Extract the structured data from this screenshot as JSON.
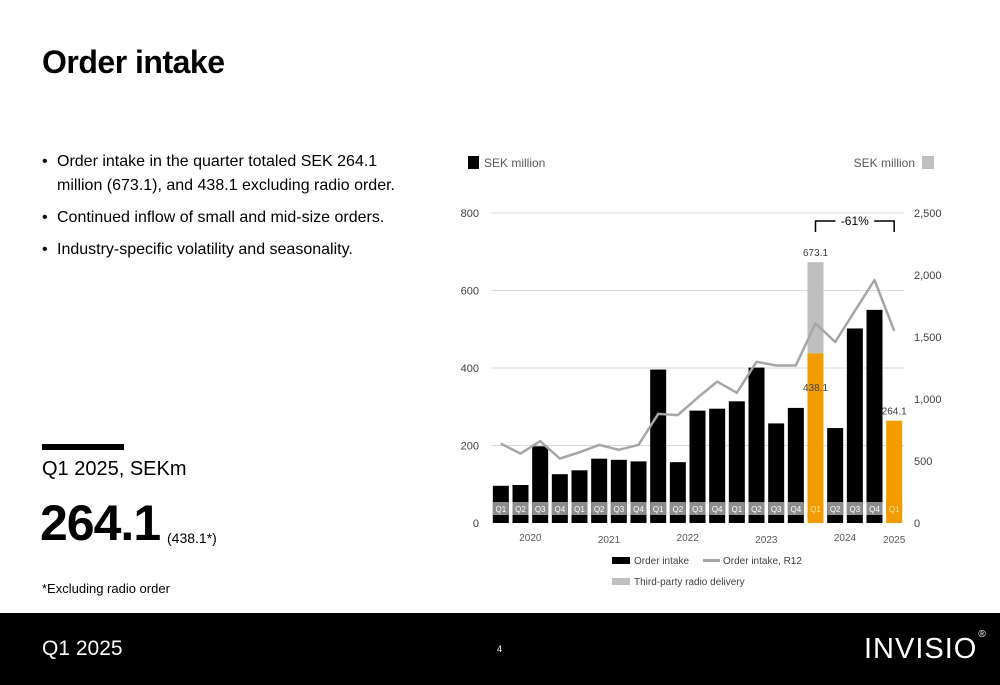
{
  "slide": {
    "title": "Order intake",
    "bullets": [
      "Order intake in the quarter totaled SEK 264.1 million (673.1), and 438.1 excluding radio order.",
      "Continued inflow of small and mid-size orders.",
      "Industry-specific volatility and seasonality."
    ],
    "kpi_label": "Q1 2025, SEKm",
    "kpi_value": "264.1",
    "kpi_note": "(438.1*)",
    "footnote": "*Excluding radio order"
  },
  "footer": {
    "left_text": "Q1 2025",
    "page": "4",
    "logo": "INVISIO",
    "logo_mark": "®"
  },
  "colors": {
    "order_intake": "#000000",
    "highlight": "#f39c00",
    "radio": "#bfbfbf",
    "r12_line": "#a6a6a6",
    "grid": "#d9d9d9",
    "quarter_tag": "#8c8c8c"
  },
  "chart_data": {
    "type": "bar",
    "left_unit_label": "SEK million",
    "right_unit_label": "SEK million",
    "y_left": {
      "min": 0,
      "max": 800,
      "ticks": [
        "0",
        "200",
        "400",
        "600",
        "800"
      ]
    },
    "y_right": {
      "min": 0,
      "max": 2500,
      "ticks": [
        "0",
        "500",
        "1,000",
        "1,500",
        "2,000",
        "2,500"
      ]
    },
    "grid": true,
    "quarters": [
      "Q1",
      "Q2",
      "Q3",
      "Q4",
      "Q1",
      "Q2",
      "Q3",
      "Q4",
      "Q1",
      "Q2",
      "Q3",
      "Q4",
      "Q1",
      "Q2",
      "Q3",
      "Q4",
      "Q1",
      "Q2",
      "Q3",
      "Q4",
      "Q1"
    ],
    "years": [
      {
        "label": "2020",
        "start": 0,
        "end": 3
      },
      {
        "label": "2021",
        "start": 4,
        "end": 7
      },
      {
        "label": "2022",
        "start": 8,
        "end": 11
      },
      {
        "label": "2023",
        "start": 12,
        "end": 15
      },
      {
        "label": "2024",
        "start": 16,
        "end": 19
      },
      {
        "label": "2025",
        "start": 20,
        "end": 20
      }
    ],
    "series": [
      {
        "name": "Order intake",
        "type": "bar",
        "axis": "left",
        "values": [
          96,
          98,
          198,
          126,
          136,
          166,
          163,
          159,
          396,
          157,
          290,
          295,
          314,
          401,
          257,
          297,
          438.1,
          245,
          502,
          550,
          264.1
        ]
      },
      {
        "name": "Third-party radio delivery",
        "type": "bar-stacked",
        "axis": "left",
        "values": [
          0,
          0,
          0,
          0,
          0,
          0,
          0,
          0,
          0,
          0,
          0,
          0,
          0,
          0,
          0,
          0,
          235,
          0,
          0,
          0,
          0
        ]
      },
      {
        "name": "Order intake, R12",
        "type": "line",
        "axis": "right",
        "values": [
          640,
          560,
          660,
          520,
          570,
          630,
          590,
          630,
          880,
          870,
          1010,
          1140,
          1050,
          1300,
          1270,
          1270,
          1610,
          1460,
          1710,
          1960,
          1550
        ]
      }
    ],
    "highlight_indices": [
      16,
      20
    ],
    "data_labels": [
      {
        "index": 16,
        "text": "673.1",
        "value": 673.1,
        "position": "above"
      },
      {
        "index": 16,
        "text": "438.1",
        "value": 438.1,
        "position": "below"
      },
      {
        "index": 20,
        "text": "264.1",
        "value": 264.1,
        "position": "above"
      }
    ],
    "annotation": {
      "text": "-61%",
      "from_index": 16,
      "to_index": 20
    },
    "legend": {
      "placement": "bottom",
      "entries": [
        "Order intake",
        "Order intake, R12",
        "Third-party radio delivery"
      ]
    }
  }
}
